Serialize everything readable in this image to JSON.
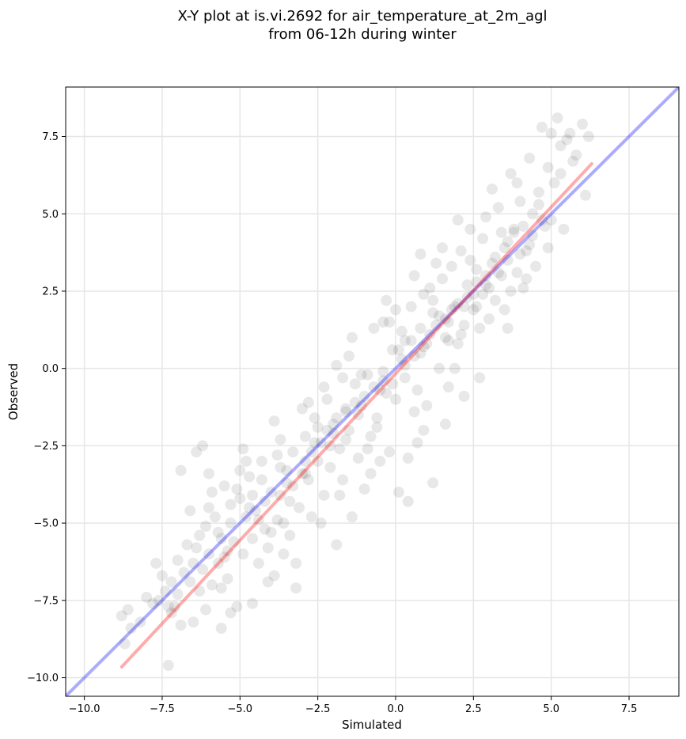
{
  "chart_data": {
    "type": "scatter",
    "title": "X-Y plot at is.vi.2692 for air_temperature_at_2m_agl",
    "subtitle": "from 06-12h during winter",
    "xlabel": "Simulated",
    "ylabel": "Observed",
    "xlim": [
      -10.6,
      9.1
    ],
    "ylim": [
      -10.6,
      9.1
    ],
    "xticks": [
      -10.0,
      -7.5,
      -5.0,
      -2.5,
      0.0,
      2.5,
      5.0,
      7.5
    ],
    "yticks": [
      -10.0,
      -7.5,
      -5.0,
      -2.5,
      0.0,
      2.5,
      5.0,
      7.5
    ],
    "xtick_labels": [
      "−10.0",
      "−7.5",
      "−5.0",
      "−2.5",
      "0.0",
      "2.5",
      "5.0",
      "7.5"
    ],
    "ytick_labels": [
      "−10.0",
      "−7.5",
      "−5.0",
      "−2.5",
      "0.0",
      "2.5",
      "5.0",
      "7.5"
    ],
    "grid": true,
    "point_color": "#000000",
    "lines": [
      {
        "kind": "one-to-one",
        "color": "#0000ff",
        "points": [
          [
            -10.6,
            -10.6
          ],
          [
            9.1,
            9.1
          ]
        ]
      },
      {
        "kind": "fit",
        "color": "#ff0000",
        "points": [
          [
            -8.8,
            -9.65
          ],
          [
            6.3,
            6.62
          ]
        ]
      }
    ],
    "points": [
      [
        -8.8,
        -8.0
      ],
      [
        -8.7,
        -8.9
      ],
      [
        -8.6,
        -7.8
      ],
      [
        -8.5,
        -8.4
      ],
      [
        -8.2,
        -8.2
      ],
      [
        -8.0,
        -7.4
      ],
      [
        -7.8,
        -7.6
      ],
      [
        -7.7,
        -6.3
      ],
      [
        -7.6,
        -7.5
      ],
      [
        -7.4,
        -7.2
      ],
      [
        -7.3,
        -7.7
      ],
      [
        -7.3,
        -9.6
      ],
      [
        -7.2,
        -6.9
      ],
      [
        -7.1,
        -7.7
      ],
      [
        -7.0,
        -7.3
      ],
      [
        -6.9,
        -8.3
      ],
      [
        -6.9,
        -3.3
      ],
      [
        -6.8,
        -6.6
      ],
      [
        -6.6,
        -6.9
      ],
      [
        -6.5,
        -8.2
      ],
      [
        -6.4,
        -5.8
      ],
      [
        -6.4,
        -2.7
      ],
      [
        -6.3,
        -7.2
      ],
      [
        -6.2,
        -2.5
      ],
      [
        -6.2,
        -6.5
      ],
      [
        -6.1,
        -7.8
      ],
      [
        -6.0,
        -3.4
      ],
      [
        -6.0,
        -6.0
      ],
      [
        -5.9,
        -7.0
      ],
      [
        -5.8,
        -4.8
      ],
      [
        -5.7,
        -6.3
      ],
      [
        -5.6,
        -5.5
      ],
      [
        -5.6,
        -8.4
      ],
      [
        -5.5,
        -3.8
      ],
      [
        -5.4,
        -6.8
      ],
      [
        -5.3,
        -4.4
      ],
      [
        -5.3,
        -7.9
      ],
      [
        -5.2,
        -5.6
      ],
      [
        -5.1,
        -7.7
      ],
      [
        -5.0,
        -3.3
      ],
      [
        -4.9,
        -6.0
      ],
      [
        -4.8,
        -4.8
      ],
      [
        -4.7,
        -3.5
      ],
      [
        -4.6,
        -5.5
      ],
      [
        -4.6,
        -7.6
      ],
      [
        -4.5,
        -4.6
      ],
      [
        -4.4,
        -6.3
      ],
      [
        -4.3,
        -3.0
      ],
      [
        -4.2,
        -5.2
      ],
      [
        -4.1,
        -5.8
      ],
      [
        -4.0,
        -4.0
      ],
      [
        -3.9,
        -6.7
      ],
      [
        -3.8,
        -4.9
      ],
      [
        -3.7,
        -2.3
      ],
      [
        -3.6,
        -5.0
      ],
      [
        -3.5,
        -3.7
      ],
      [
        -3.4,
        -4.3
      ],
      [
        -3.3,
        -2.7
      ],
      [
        -3.2,
        -7.1
      ],
      [
        -3.2,
        -6.3
      ],
      [
        -3.1,
        -4.5
      ],
      [
        -3.0,
        -3.4
      ],
      [
        -2.9,
        -2.2
      ],
      [
        -2.8,
        -3.6
      ],
      [
        -2.7,
        -4.8
      ],
      [
        -2.6,
        -1.6
      ],
      [
        -2.5,
        -3.0
      ],
      [
        -2.4,
        -2.4
      ],
      [
        -2.3,
        -4.1
      ],
      [
        -2.2,
        -1.0
      ],
      [
        -2.1,
        -3.2
      ],
      [
        -2.0,
        -1.8
      ],
      [
        -1.9,
        -5.7
      ],
      [
        -1.9,
        0.1
      ],
      [
        -1.8,
        -2.6
      ],
      [
        -1.7,
        -3.6
      ],
      [
        -1.6,
        -1.4
      ],
      [
        -1.5,
        -2.0
      ],
      [
        -1.4,
        -4.8
      ],
      [
        -1.3,
        -0.5
      ],
      [
        -1.2,
        -2.9
      ],
      [
        -1.1,
        -1.2
      ],
      [
        -1.0,
        -3.9
      ],
      [
        -0.9,
        -0.2
      ],
      [
        -0.8,
        -2.2
      ],
      [
        -0.7,
        1.3
      ],
      [
        -0.6,
        -1.6
      ],
      [
        -0.5,
        -3.0
      ],
      [
        -0.4,
        1.5
      ],
      [
        -0.3,
        -0.8
      ],
      [
        -0.2,
        -2.7
      ],
      [
        -0.1,
        0.6
      ],
      [
        0.0,
        -1.0
      ],
      [
        0.1,
        -4.0
      ],
      [
        0.2,
        1.2
      ],
      [
        0.3,
        -0.3
      ],
      [
        0.4,
        -4.3
      ],
      [
        0.5,
        2.0
      ],
      [
        0.6,
        0.4
      ],
      [
        0.7,
        -2.4
      ],
      [
        0.8,
        3.7
      ],
      [
        0.9,
        0.7
      ],
      [
        1.0,
        -1.2
      ],
      [
        1.1,
        2.6
      ],
      [
        1.2,
        -3.7
      ],
      [
        1.3,
        1.4
      ],
      [
        1.4,
        0.0
      ],
      [
        1.5,
        2.9
      ],
      [
        1.6,
        1.0
      ],
      [
        1.7,
        -0.6
      ],
      [
        1.8,
        3.3
      ],
      [
        1.9,
        2.0
      ],
      [
        2.0,
        0.8
      ],
      [
        2.1,
        3.8
      ],
      [
        2.2,
        1.4
      ],
      [
        2.3,
        2.7
      ],
      [
        2.4,
        4.5
      ],
      [
        2.5,
        1.9
      ],
      [
        2.6,
        3.2
      ],
      [
        2.7,
        -0.3
      ],
      [
        2.8,
        2.4
      ],
      [
        2.9,
        4.9
      ],
      [
        3.0,
        1.6
      ],
      [
        3.1,
        3.4
      ],
      [
        3.2,
        2.2
      ],
      [
        3.3,
        5.2
      ],
      [
        3.4,
        3.0
      ],
      [
        3.5,
        1.9
      ],
      [
        3.6,
        4.1
      ],
      [
        3.7,
        6.3
      ],
      [
        3.8,
        4.5
      ],
      [
        3.9,
        3.1
      ],
      [
        4.0,
        5.4
      ],
      [
        4.1,
        2.6
      ],
      [
        4.2,
        3.8
      ],
      [
        4.3,
        6.8
      ],
      [
        4.4,
        4.3
      ],
      [
        4.5,
        3.3
      ],
      [
        4.6,
        5.7
      ],
      [
        4.7,
        7.8
      ],
      [
        4.8,
        4.6
      ],
      [
        4.9,
        6.5
      ],
      [
        5.0,
        7.6
      ],
      [
        5.0,
        4.8
      ],
      [
        5.2,
        8.1
      ],
      [
        5.3,
        7.2
      ],
      [
        5.4,
        4.5
      ],
      [
        5.5,
        7.4
      ],
      [
        5.6,
        7.6
      ],
      [
        5.8,
        6.9
      ],
      [
        6.0,
        7.9
      ],
      [
        6.1,
        5.6
      ],
      [
        6.2,
        7.5
      ],
      [
        5.1,
        6.0
      ],
      [
        -6.6,
        -4.6
      ],
      [
        -6.0,
        -4.5
      ],
      [
        -5.3,
        -5.0
      ],
      [
        -4.8,
        -3.0
      ],
      [
        -4.4,
        -4.9
      ],
      [
        -4.0,
        -5.3
      ],
      [
        -3.7,
        -3.2
      ],
      [
        -3.3,
        -3.8
      ],
      [
        -2.9,
        -3.0
      ],
      [
        -2.6,
        -2.4
      ],
      [
        -2.2,
        -2.0
      ],
      [
        -1.9,
        -1.6
      ],
      [
        -1.6,
        -2.3
      ],
      [
        -1.3,
        -1.1
      ],
      [
        -1.0,
        -0.9
      ],
      [
        -0.7,
        -0.6
      ],
      [
        -0.4,
        -0.1
      ],
      [
        -0.1,
        -0.5
      ],
      [
        0.2,
        0.3
      ],
      [
        0.5,
        0.9
      ],
      [
        0.8,
        0.5
      ],
      [
        1.1,
        1.1
      ],
      [
        1.4,
        1.7
      ],
      [
        1.7,
        1.5
      ],
      [
        2.0,
        2.1
      ],
      [
        2.3,
        2.3
      ],
      [
        2.6,
        2.8
      ],
      [
        2.9,
        3.0
      ],
      [
        3.2,
        3.6
      ],
      [
        3.5,
        3.9
      ],
      [
        3.8,
        4.4
      ],
      [
        4.1,
        4.6
      ],
      [
        4.4,
        5.0
      ],
      [
        -7.0,
        -6.2
      ],
      [
        -6.3,
        -5.4
      ],
      [
        -5.7,
        -5.3
      ],
      [
        -5.0,
        -4.2
      ],
      [
        -4.2,
        -4.3
      ],
      [
        -3.5,
        -3.3
      ],
      [
        -2.7,
        -2.7
      ],
      [
        -2.0,
        -2.1
      ],
      [
        -1.2,
        -1.5
      ],
      [
        -0.5,
        -0.7
      ],
      [
        0.3,
        0.1
      ],
      [
        1.0,
        0.8
      ],
      [
        1.8,
        1.9
      ],
      [
        2.5,
        2.4
      ],
      [
        3.3,
        3.1
      ],
      [
        4.0,
        3.7
      ],
      [
        4.7,
        4.8
      ],
      [
        -3.0,
        -1.3
      ],
      [
        -1.5,
        0.4
      ],
      [
        0.0,
        1.9
      ],
      [
        1.3,
        3.4
      ],
      [
        -2.4,
        -5.0
      ],
      [
        -0.8,
        -3.4
      ],
      [
        0.9,
        -2.0
      ],
      [
        2.2,
        -0.9
      ],
      [
        3.6,
        1.3
      ],
      [
        -4.9,
        -2.6
      ],
      [
        -3.9,
        -1.7
      ],
      [
        -1.8,
        -4.1
      ],
      [
        0.6,
        3.0
      ],
      [
        2.8,
        4.2
      ],
      [
        1.6,
        -1.8
      ],
      [
        -0.3,
        2.2
      ],
      [
        -5.9,
        -4.0
      ],
      [
        -3.6,
        -6.0
      ],
      [
        -2.3,
        -0.6
      ],
      [
        0.4,
        -2.9
      ],
      [
        1.9,
        0.0
      ],
      [
        3.1,
        5.8
      ],
      [
        4.2,
        2.9
      ],
      [
        -7.5,
        -6.7
      ],
      [
        -6.7,
        -5.7
      ],
      [
        -5.5,
        -6.1
      ],
      [
        -4.6,
        -4.1
      ],
      [
        -3.8,
        -2.8
      ],
      [
        -2.5,
        -1.9
      ],
      [
        -1.1,
        -0.2
      ],
      [
        0.1,
        0.6
      ],
      [
        1.2,
        2.2
      ],
      [
        2.4,
        3.5
      ],
      [
        3.4,
        4.4
      ],
      [
        4.6,
        5.3
      ],
      [
        5.3,
        6.3
      ],
      [
        -0.6,
        -1.9
      ],
      [
        0.7,
        -0.7
      ],
      [
        2.1,
        1.1
      ],
      [
        1.5,
        3.9
      ],
      [
        -1.4,
        1.0
      ],
      [
        -2.8,
        -1.1
      ],
      [
        -4.3,
        -3.6
      ],
      [
        -5.1,
        -3.9
      ],
      [
        -6.1,
        -5.1
      ],
      [
        3.7,
        2.5
      ],
      [
        2.7,
        1.3
      ],
      [
        0.9,
        2.4
      ],
      [
        -0.2,
        1.5
      ],
      [
        -1.7,
        -0.3
      ],
      [
        4.9,
        3.9
      ],
      [
        5.7,
        6.7
      ],
      [
        3.9,
        6.0
      ],
      [
        2.0,
        4.8
      ],
      [
        -3.4,
        -5.4
      ],
      [
        -4.1,
        -6.9
      ],
      [
        -5.6,
        -7.1
      ],
      [
        -0.9,
        -2.6
      ],
      [
        0.6,
        -1.4
      ],
      [
        1.7,
        0.9
      ],
      [
        2.6,
        2.0
      ],
      [
        3.0,
        2.6
      ],
      [
        1.2,
        1.8
      ],
      [
        0.3,
        0.9
      ],
      [
        -0.4,
        -0.4
      ],
      [
        -1.6,
        -1.3
      ],
      [
        -2.1,
        -2.5
      ],
      [
        -2.9,
        -3.4
      ],
      [
        -3.7,
        -4.1
      ],
      [
        -4.7,
        -4.5
      ],
      [
        -5.4,
        -5.9
      ],
      [
        -6.5,
        -6.3
      ],
      [
        -7.2,
        -7.9
      ],
      [
        4.3,
        4.0
      ],
      [
        3.6,
        3.5
      ],
      [
        2.9,
        2.7
      ],
      [
        2.2,
        2.0
      ],
      [
        1.6,
        1.6
      ],
      [
        0.8,
        1.3
      ]
    ]
  }
}
